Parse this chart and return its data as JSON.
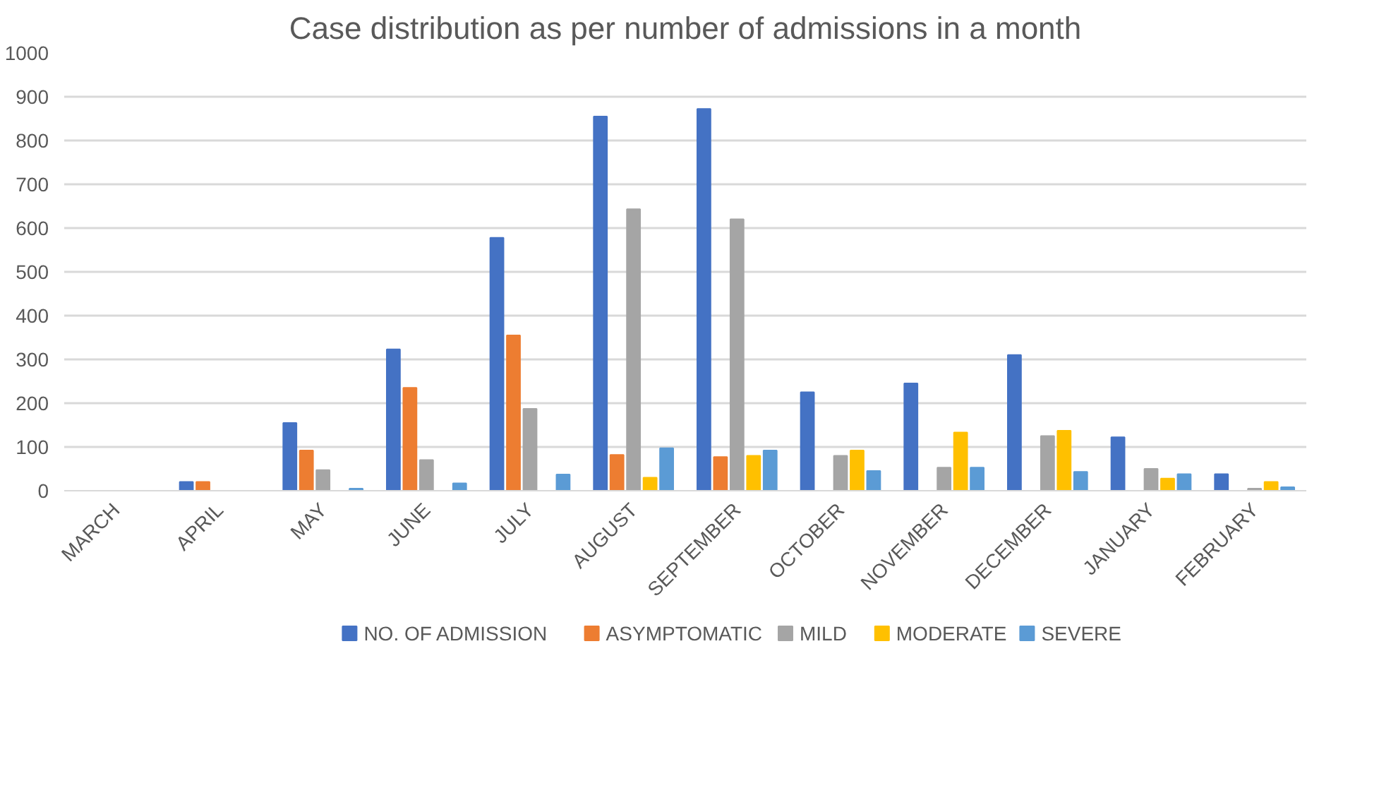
{
  "chart_data": {
    "type": "bar",
    "title": "Case distribution as per number of admissions in a month",
    "categories": [
      "MARCH",
      "APRIL",
      "MAY",
      "JUNE",
      "JULY",
      "AUGUST",
      "SEPTEMBER",
      "OCTOBER",
      "NOVEMBER",
      "DECEMBER",
      "JANUARY",
      "FEBRUARY"
    ],
    "series": [
      {
        "name": "NO. OF ADMISSION",
        "color": "#4472c4",
        "values": [
          0,
          20,
          155,
          323,
          578,
          855,
          872,
          225,
          245,
          310,
          122,
          38
        ]
      },
      {
        "name": "ASYMPTOMATIC",
        "color": "#ed7d31",
        "values": [
          0,
          20,
          92,
          235,
          355,
          82,
          77,
          0,
          0,
          0,
          0,
          0
        ]
      },
      {
        "name": "MILD",
        "color": "#a5a5a5",
        "values": [
          0,
          0,
          47,
          70,
          187,
          643,
          620,
          80,
          53,
          125,
          50,
          5
        ]
      },
      {
        "name": "MODERATE",
        "color": "#ffc000",
        "values": [
          0,
          0,
          0,
          0,
          0,
          30,
          80,
          92,
          133,
          137,
          28,
          20
        ]
      },
      {
        "name": "SEVERE",
        "color": "#5b9bd5",
        "values": [
          0,
          0,
          5,
          17,
          37,
          97,
          92,
          45,
          53,
          43,
          38,
          8
        ]
      }
    ],
    "ylim": [
      0,
      1000
    ],
    "yticks": [
      0,
      100,
      200,
      300,
      400,
      500,
      600,
      700,
      800,
      900,
      1000
    ],
    "grid": "y",
    "legend": "bottom"
  }
}
